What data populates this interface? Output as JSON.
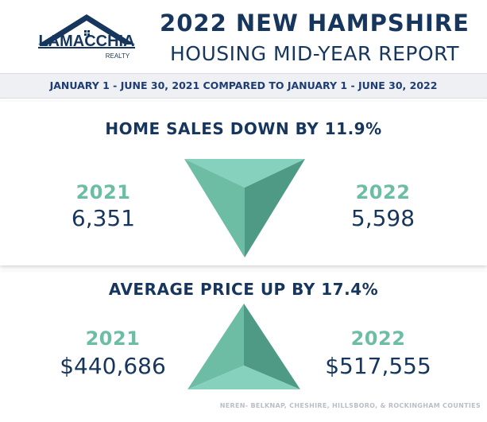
{
  "logo": {
    "name": "LAMACCHIA",
    "tagline": "REALTY"
  },
  "header": {
    "title": "2022 NEW HAMPSHIRE",
    "subtitle": "HOUSING MID-YEAR REPORT"
  },
  "date_range": "JANUARY 1  -  JUNE 30, 2021 COMPARED TO JANUARY 1  -  JUNE 30, 2022",
  "sales": {
    "title": "HOME SALES DOWN BY 11.9%",
    "year_a": "2021",
    "value_a": "6,351",
    "year_b": "2022",
    "value_b": "5,598"
  },
  "price": {
    "title": "AVERAGE PRICE UP BY 17.4%",
    "year_a": "2021",
    "value_a": "$440,686",
    "year_b": "2022",
    "value_b": "$517,555"
  },
  "footnote": "NEREN- BELKNAP, CHESHIRE, HILLSBORO, & ROCKINGHAM COUNTIES",
  "colors": {
    "navy": "#17365d",
    "teal": "#6dbda5",
    "teal_light": "#86d1bd",
    "teal_dark": "#4e9a84"
  },
  "icons": {
    "down": "down-triangle-icon",
    "up": "up-triangle-icon"
  }
}
